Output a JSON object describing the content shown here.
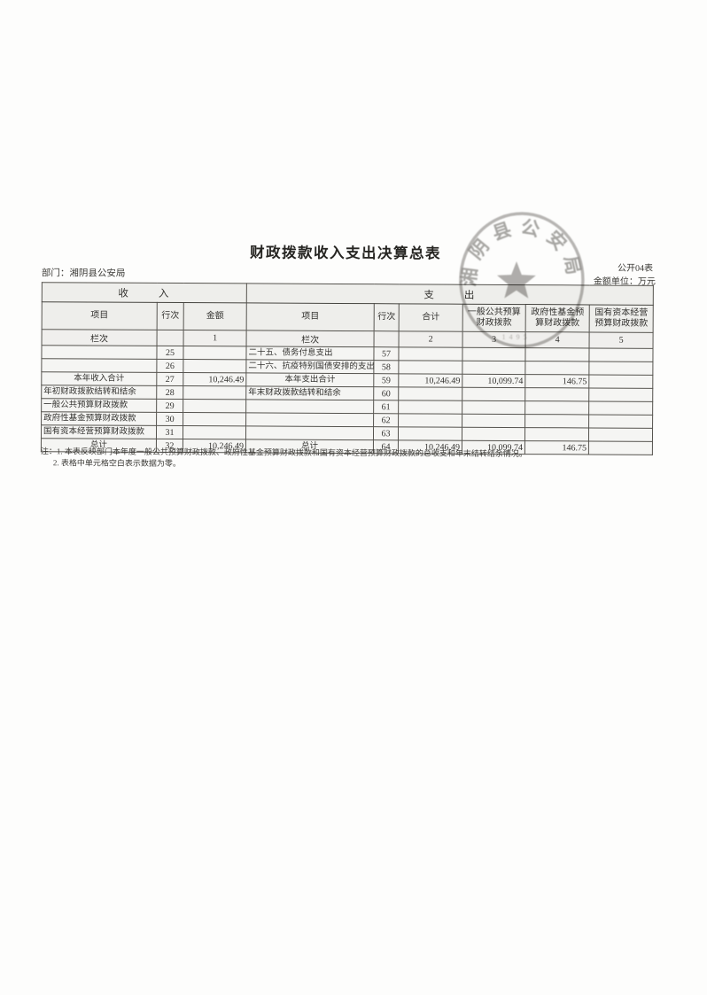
{
  "doc": {
    "title": "财政拨款收入支出决算总表",
    "table_code": "公开04表",
    "department": "部门：湘阴县公安局",
    "unit": "金额单位：万元"
  },
  "table": {
    "income_section": "收入",
    "expense_section": "支出",
    "headers": [
      "项目",
      "行次",
      "金额",
      "项目",
      "行次",
      "合计",
      "一般公共预算\n财政拨款",
      "政府性基金预\n算财政拨款",
      "国有资本经营\n预算财政拨款"
    ],
    "lanci_row": [
      "栏次",
      "",
      "1",
      "栏次",
      "",
      "2",
      "3",
      "4",
      "5"
    ],
    "rows": [
      {
        "cells": [
          "",
          "25",
          "",
          "二十五、债务付息支出",
          "57",
          "",
          "",
          "",
          ""
        ],
        "item_align": "left"
      },
      {
        "cells": [
          "",
          "26",
          "",
          "二十六、抗疫特别国债安排的支出",
          "58",
          "",
          "",
          "",
          ""
        ],
        "item_align": "left"
      },
      {
        "cells": [
          "本年收入合计",
          "27",
          "10,246.49",
          "本年支出合计",
          "59",
          "10,246.49",
          "10,099.74",
          "146.75",
          ""
        ],
        "item_align": "center"
      },
      {
        "cells": [
          "年初财政拨款结转和结余",
          "28",
          "",
          "年末财政拨款结转和结余",
          "60",
          "",
          "",
          "",
          ""
        ],
        "item_align": "left"
      },
      {
        "cells": [
          "一般公共预算财政拨款",
          "29",
          "",
          "",
          "61",
          "",
          "",
          "",
          ""
        ],
        "item_align": "left"
      },
      {
        "cells": [
          "政府性基金预算财政拨款",
          "30",
          "",
          "",
          "62",
          "",
          "",
          "",
          ""
        ],
        "item_align": "left"
      },
      {
        "cells": [
          "国有资本经营预算财政拨款",
          "31",
          "",
          "",
          "63",
          "",
          "",
          "",
          ""
        ],
        "item_align": "left"
      },
      {
        "cells": [
          "总计",
          "32",
          "10,246.49",
          "总计",
          "64",
          "10,246.49",
          "10,099.74",
          "146.75",
          ""
        ],
        "item_align": "center"
      }
    ]
  },
  "notes": [
    "注：1. 本表反映部门本年度一般公共预算财政拨款、政府性基金预算财政拨款和国有资本经营预算财政拨款的总收支和年末结转结余情况。",
    "2. 表格中单元格空白表示数据为零。"
  ],
  "seal": {
    "text": "湘阴县公安局",
    "code": "1495",
    "ink_color": "#9b9996"
  }
}
